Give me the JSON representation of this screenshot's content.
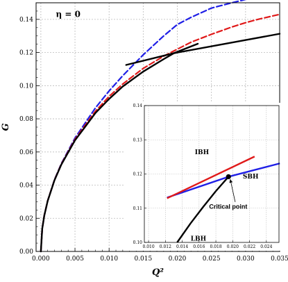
{
  "chart_data": [
    {
      "type": "line",
      "xlabel": "Q²",
      "ylabel": "G",
      "xlim": [
        -0.0007,
        0.035
      ],
      "ylim": [
        0,
        0.15
      ],
      "x_ticks": [
        0.0,
        0.005,
        0.01,
        0.015,
        0.02,
        0.025,
        0.03,
        0.035
      ],
      "x_tick_labels": [
        "0.000",
        "0.005",
        "0.010",
        "0.015",
        "0.020",
        "0.025",
        "0.030",
        "0.035"
      ],
      "y_ticks": [
        0.0,
        0.02,
        0.04,
        0.06,
        0.08,
        0.1,
        0.12,
        0.14
      ],
      "y_tick_labels": [
        "0.00",
        "0.02",
        "0.04",
        "0.06",
        "0.08",
        "0.10",
        "0.12",
        "0.14"
      ],
      "grid": true,
      "annotations": [
        {
          "text": "η = 0",
          "x": 0.0022,
          "y": 0.1415
        }
      ],
      "series": [
        {
          "style": "dashed",
          "color": "#1f1fe6",
          "x": [
            0.0,
            0.0002,
            0.0005,
            0.001,
            0.002,
            0.003,
            0.005,
            0.008,
            0.01,
            0.012,
            0.015,
            0.018,
            0.02,
            0.022,
            0.025,
            0.028,
            0.03,
            0.032,
            0.034
          ],
          "y": [
            0.0,
            0.0137,
            0.0217,
            0.0306,
            0.0433,
            0.053,
            0.0684,
            0.0866,
            0.0968,
            0.106,
            0.1186,
            0.13,
            0.1369,
            0.1412,
            0.1468,
            0.15,
            0.152,
            0.1535,
            0.1548
          ]
        },
        {
          "style": "dashed",
          "color": "#e01a1a",
          "x": [
            0.0,
            0.0002,
            0.0005,
            0.001,
            0.002,
            0.003,
            0.005,
            0.008,
            0.01,
            0.012,
            0.015,
            0.018,
            0.02,
            0.022,
            0.025,
            0.028,
            0.03,
            0.032,
            0.035
          ],
          "y": [
            0.0,
            0.0137,
            0.0217,
            0.0306,
            0.0432,
            0.0527,
            0.0676,
            0.0846,
            0.0935,
            0.101,
            0.1104,
            0.1178,
            0.122,
            0.1262,
            0.131,
            0.1354,
            0.138,
            0.1402,
            0.143
          ]
        },
        {
          "style": "solid",
          "color": "#000000",
          "x": [
            0.0,
            0.0002,
            0.0005,
            0.001,
            0.002,
            0.003,
            0.005,
            0.008,
            0.01,
            0.012,
            0.015,
            0.018,
            0.0195
          ],
          "y": [
            0.0,
            0.0137,
            0.0216,
            0.0305,
            0.043,
            0.0524,
            0.067,
            0.0835,
            0.092,
            0.0995,
            0.1085,
            0.116,
            0.1196
          ]
        },
        {
          "style": "solid",
          "color": "#000000",
          "x": [
            0.0125,
            0.0195,
            0.023
          ],
          "y": [
            0.1125,
            0.1196,
            0.1253
          ]
        },
        {
          "style": "solid",
          "color": "#000000",
          "x": [
            0.0195,
            0.035
          ],
          "y": [
            0.1196,
            0.1313
          ]
        }
      ]
    },
    {
      "type": "line",
      "xlim": [
        0.0095,
        0.0255
      ],
      "ylim": [
        0.1,
        0.14
      ],
      "x_ticks": [
        0.01,
        0.012,
        0.014,
        0.016,
        0.018,
        0.02,
        0.022,
        0.024
      ],
      "x_tick_labels": [
        "0.010",
        "0.012",
        "0.014",
        "0.016",
        "0.018",
        "0.020",
        "0.022",
        "0.024"
      ],
      "y_ticks": [
        0.1,
        0.11,
        0.12,
        0.13,
        0.14
      ],
      "y_tick_labels": [
        "0.10",
        "0.11",
        "0.12",
        "0.13",
        "0.14"
      ],
      "grid": true,
      "labels": {
        "ibh": "IBH",
        "sbh": "SBH",
        "lbh": "LBH",
        "critical": "Critical point"
      },
      "critical_point": {
        "x": 0.0195,
        "y": 0.1192
      },
      "series": [
        {
          "name": "IBH",
          "style": "solid",
          "color": "#e01a1a",
          "x": [
            0.0122,
            0.0226
          ],
          "y": [
            0.1129,
            0.1251
          ]
        },
        {
          "name": "SBH",
          "style": "solid",
          "color": "#1f1fe6",
          "x": [
            0.0195,
            0.0256
          ],
          "y": [
            0.1192,
            0.1231
          ]
        },
        {
          "name": "LBH",
          "style": "solid",
          "color": "#000000",
          "x": [
            0.0134,
            0.015,
            0.0165,
            0.018,
            0.0195
          ],
          "y": [
            0.1,
            0.1056,
            0.1104,
            0.115,
            0.1192
          ]
        },
        {
          "style": "solid",
          "color": "#1f1fe6",
          "x": [
            0.0122,
            0.0195
          ],
          "y": [
            0.1131,
            0.1192
          ]
        }
      ]
    }
  ]
}
